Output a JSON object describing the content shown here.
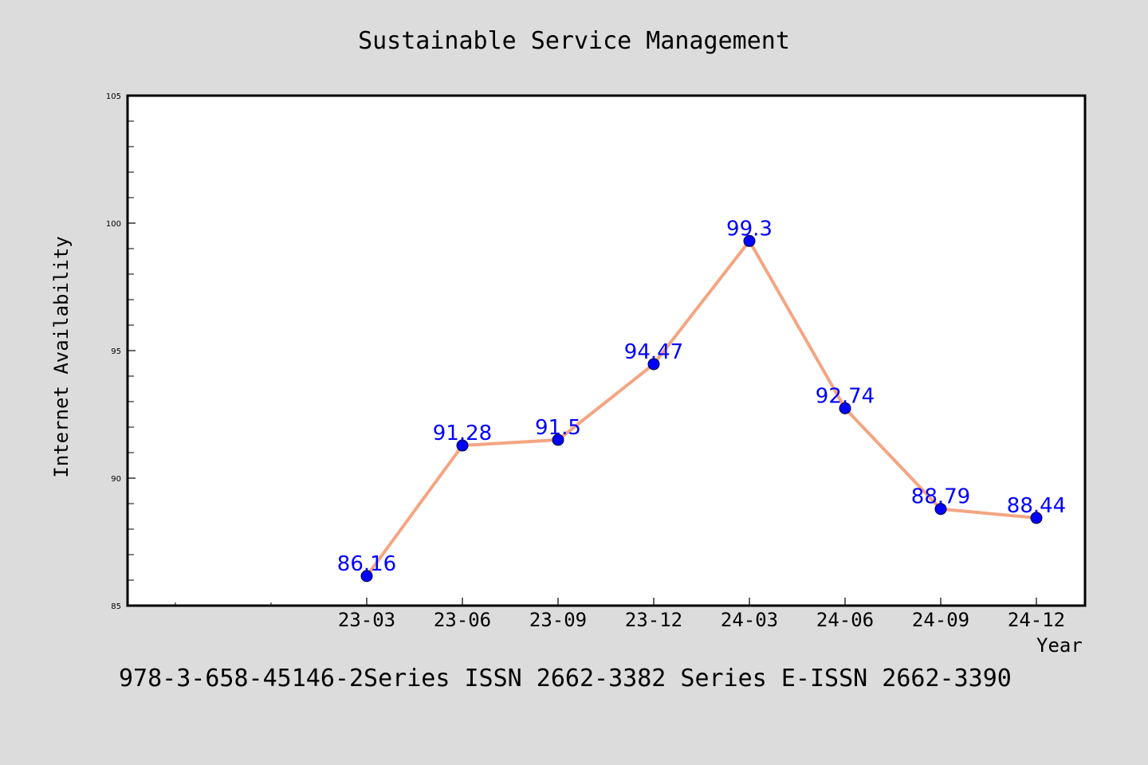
{
  "chart_data": {
    "type": "line",
    "title": "Sustainable Service Management",
    "xlabel": "Year",
    "ylabel": "Internet Availability",
    "categories": [
      "23-03",
      "23-06",
      "23-09",
      "23-12",
      "24-03",
      "24-06",
      "24-09",
      "24-12"
    ],
    "series": [
      {
        "values": [
          86.16,
          91.28,
          91.5,
          94.47,
          99.3,
          92.74,
          88.79,
          88.44
        ],
        "line_color": "#f4a582",
        "marker_color": "#0000ff"
      }
    ],
    "data_labels": [
      "86.16",
      "91.28",
      "91.5",
      "94.47",
      "99.3",
      "92.74",
      "88.79",
      "88.44"
    ],
    "ylim": [
      85,
      105
    ],
    "yticks": [
      85,
      90,
      95,
      100,
      105
    ],
    "grid": false,
    "legend": "none"
  },
  "footer": {
    "text": "978-3-658-45146-2Series ISSN 2662-3382 Series E-ISSN 2662-3390"
  },
  "colors": {
    "background": "#dcdcdc",
    "plot_background": "#ffffff",
    "line": "#f4a582",
    "marker": "#0000ff",
    "label": "#0000ff"
  }
}
